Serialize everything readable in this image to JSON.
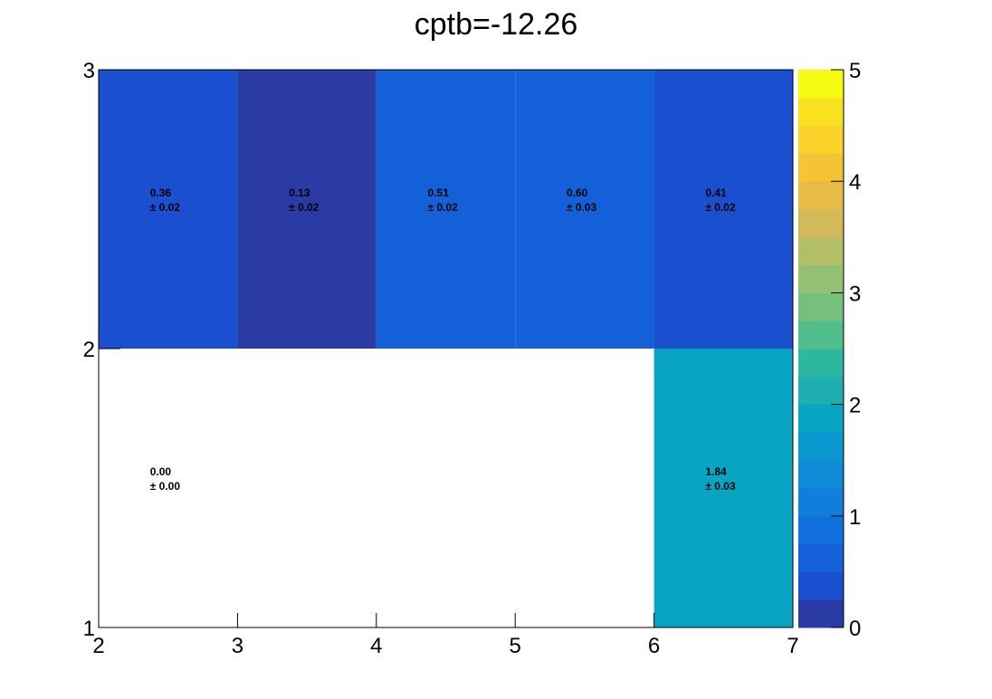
{
  "chart_data": {
    "type": "heatmap",
    "title": "cptb=-12.26",
    "xlabel": "",
    "ylabel": "",
    "xlim": [
      2,
      7
    ],
    "ylim": [
      1,
      3
    ],
    "x_ticks": [
      "2",
      "3",
      "4",
      "5",
      "6",
      "7"
    ],
    "y_ticks": [
      "1",
      "2",
      "3"
    ],
    "x_bin_edges": [
      2,
      3,
      4,
      5,
      6,
      7
    ],
    "y_bin_edges": [
      1,
      2,
      3
    ],
    "zlim": [
      0,
      5
    ],
    "colorbar_ticks": [
      "0",
      "1",
      "2",
      "3",
      "4",
      "5"
    ],
    "palette": [
      "#2a3ba6",
      "#1a4fcf",
      "#1460d8",
      "#1270dc",
      "#127edc",
      "#0f8bd8",
      "#0b98d0",
      "#08a4c4",
      "#1eadb0",
      "#2bb89e",
      "#4fbe8c",
      "#74c07c",
      "#93c174",
      "#b3bf66",
      "#d3ba58",
      "#e6bb48",
      "#f5c436",
      "#fbd12a",
      "#f8e21f",
      "#f5fb10"
    ],
    "cells": [
      {
        "x": 2.5,
        "y": 2.5,
        "value": 0.36,
        "label": "0.36",
        "error": "± 0.02"
      },
      {
        "x": 3.5,
        "y": 2.5,
        "value": 0.13,
        "label": "0.13",
        "error": "± 0.02"
      },
      {
        "x": 4.5,
        "y": 2.5,
        "value": 0.51,
        "label": "0.51",
        "error": "± 0.02"
      },
      {
        "x": 5.5,
        "y": 2.5,
        "value": 0.6,
        "label": "0.60",
        "error": "± 0.03"
      },
      {
        "x": 6.5,
        "y": 2.5,
        "value": 0.41,
        "label": "0.41",
        "error": "± 0.02"
      },
      {
        "x": 2.5,
        "y": 1.5,
        "value": 0.0,
        "label": "0.00",
        "error": "± 0.00"
      },
      {
        "x": 6.5,
        "y": 1.5,
        "value": 1.84,
        "label": "1.84",
        "error": "± 0.03"
      }
    ]
  }
}
